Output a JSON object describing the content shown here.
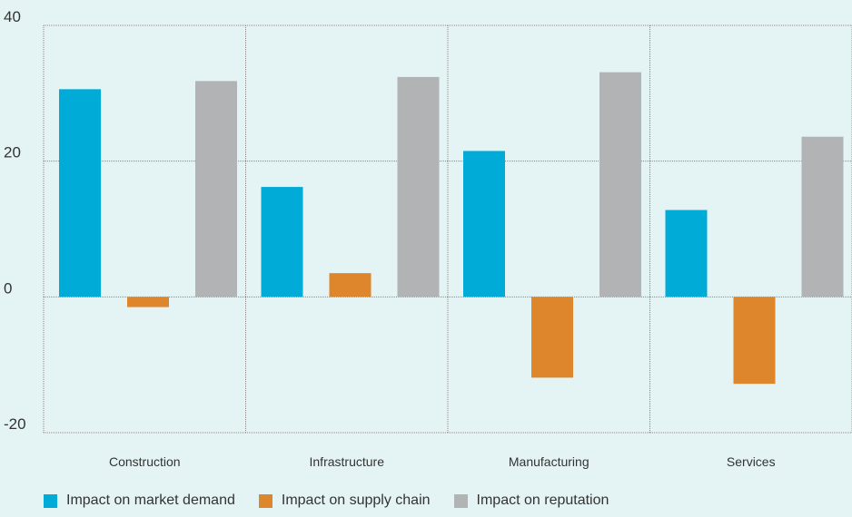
{
  "colors": {
    "market": "#00abd7",
    "supply": "#dd862b",
    "reputation": "#b2b3b5",
    "background": "#e4f4f5",
    "grid": "#888888"
  },
  "chart_data": {
    "type": "bar",
    "categories": [
      "Construction",
      "Infrastructure",
      "Manufacturing",
      "Services"
    ],
    "series": [
      {
        "name": "Impact on market demand",
        "values": [
          30.6,
          16.2,
          21.5,
          12.8
        ],
        "color": "#00abd7"
      },
      {
        "name": "Impact on supply chain",
        "values": [
          -1.5,
          3.5,
          -11.9,
          -12.8
        ],
        "color": "#dd862b"
      },
      {
        "name": "Impact on reputation",
        "values": [
          31.8,
          32.4,
          33.1,
          23.6
        ],
        "color": "#b2b3b5"
      }
    ],
    "yticks": [
      "40",
      "20",
      "0",
      "-20"
    ],
    "ytick_values": [
      40,
      20,
      0,
      -20
    ],
    "ylim": [
      -20,
      40
    ],
    "xlabel": "",
    "ylabel": "",
    "grid": true,
    "legend": "bottom-left"
  },
  "legend": {
    "items": [
      {
        "label": "Impact on market demand",
        "color": "#00abd7"
      },
      {
        "label": "Impact on supply chain",
        "color": "#dd862b"
      },
      {
        "label": "Impact on reputation",
        "color": "#b2b3b5"
      }
    ]
  }
}
